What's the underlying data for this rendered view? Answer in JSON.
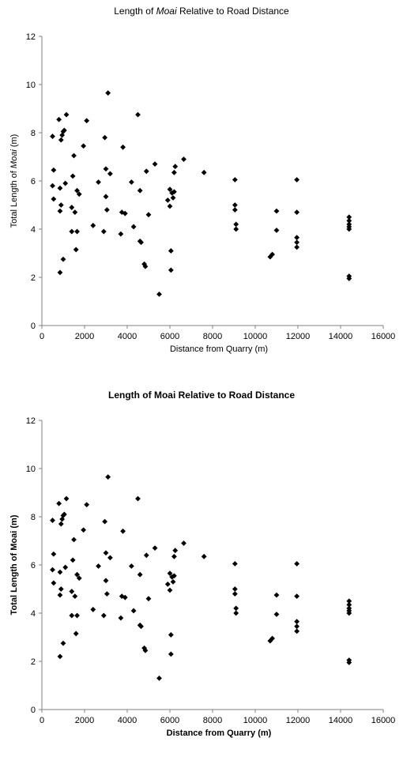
{
  "chart_data": [
    {
      "type": "scatter",
      "title_parts": [
        "Length of ",
        "Moai",
        " Relative to Road Distance"
      ],
      "xlabel": "Distance from Quarry (m)",
      "ylabel_parts": [
        "Total Length of ",
        "Moai",
        " (m)"
      ],
      "bold_labels": false,
      "xlim": [
        0,
        16000
      ],
      "ylim": [
        0,
        12
      ],
      "xticks": [
        "0",
        "2000",
        "4000",
        "6000",
        "8000",
        "10000",
        "12000",
        "14000",
        "16000"
      ],
      "yticks": [
        "0",
        "2",
        "4",
        "6",
        "8",
        "10",
        "12"
      ],
      "marker": "diamond",
      "marker_color": "#000000",
      "grid": false,
      "legend": "none",
      "points": [
        [
          500,
          7.85
        ],
        [
          500,
          5.8
        ],
        [
          550,
          6.45
        ],
        [
          550,
          5.25
        ],
        [
          800,
          8.55
        ],
        [
          850,
          5.7
        ],
        [
          850,
          4.75
        ],
        [
          900,
          5.0
        ],
        [
          900,
          7.7
        ],
        [
          950,
          7.9
        ],
        [
          1000,
          8.05
        ],
        [
          1050,
          8.1
        ],
        [
          1100,
          5.9
        ],
        [
          1000,
          2.75
        ],
        [
          850,
          2.2
        ],
        [
          1150,
          8.75
        ],
        [
          1400,
          3.9
        ],
        [
          1400,
          4.9
        ],
        [
          1450,
          6.2
        ],
        [
          1500,
          7.05
        ],
        [
          1550,
          4.7
        ],
        [
          1600,
          3.15
        ],
        [
          1650,
          3.9
        ],
        [
          1650,
          5.6
        ],
        [
          1750,
          5.45
        ],
        [
          1950,
          7.45
        ],
        [
          2100,
          8.5
        ],
        [
          2400,
          4.15
        ],
        [
          2650,
          5.95
        ],
        [
          2900,
          3.9
        ],
        [
          2950,
          7.8
        ],
        [
          3000,
          6.5
        ],
        [
          3000,
          5.35
        ],
        [
          3050,
          4.8
        ],
        [
          3100,
          9.65
        ],
        [
          3200,
          6.3
        ],
        [
          3700,
          3.8
        ],
        [
          3750,
          4.7
        ],
        [
          3800,
          7.4
        ],
        [
          3900,
          4.65
        ],
        [
          4200,
          5.95
        ],
        [
          4300,
          4.1
        ],
        [
          4500,
          8.75
        ],
        [
          4600,
          5.6
        ],
        [
          4600,
          3.5
        ],
        [
          4650,
          3.45
        ],
        [
          4800,
          2.55
        ],
        [
          4850,
          2.45
        ],
        [
          4900,
          6.4
        ],
        [
          5000,
          4.6
        ],
        [
          5300,
          6.7
        ],
        [
          5500,
          1.3
        ],
        [
          5900,
          5.2
        ],
        [
          6000,
          5.65
        ],
        [
          6000,
          4.95
        ],
        [
          6050,
          3.1
        ],
        [
          6050,
          2.3
        ],
        [
          6100,
          5.5
        ],
        [
          6150,
          5.3
        ],
        [
          6200,
          5.55
        ],
        [
          6200,
          6.35
        ],
        [
          6250,
          6.6
        ],
        [
          6650,
          6.9
        ],
        [
          7600,
          6.35
        ],
        [
          9050,
          6.05
        ],
        [
          9050,
          5.0
        ],
        [
          9050,
          4.8
        ],
        [
          9100,
          4.2
        ],
        [
          9100,
          4.0
        ],
        [
          10700,
          2.85
        ],
        [
          10800,
          2.95
        ],
        [
          11000,
          4.75
        ],
        [
          11000,
          3.95
        ],
        [
          11950,
          6.05
        ],
        [
          11950,
          4.7
        ],
        [
          11950,
          3.65
        ],
        [
          11950,
          3.45
        ],
        [
          11950,
          3.25
        ],
        [
          14400,
          4.5
        ],
        [
          14400,
          4.35
        ],
        [
          14400,
          4.2
        ],
        [
          14400,
          4.1
        ],
        [
          14400,
          4.0
        ],
        [
          14400,
          2.05
        ],
        [
          14400,
          1.95
        ]
      ]
    },
    {
      "type": "scatter",
      "title_parts": [
        "Length of Moai Relative to Road Distance"
      ],
      "xlabel": "Distance from Quarry (m)",
      "ylabel_parts": [
        "Total Length of Moai (m)"
      ],
      "bold_labels": true,
      "xlim": [
        0,
        16000
      ],
      "ylim": [
        0,
        12
      ],
      "xticks": [
        "0",
        "2000",
        "4000",
        "6000",
        "8000",
        "10000",
        "12000",
        "14000",
        "16000"
      ],
      "yticks": [
        "0",
        "2",
        "4",
        "6",
        "8",
        "10",
        "12"
      ],
      "marker": "diamond",
      "marker_color": "#000000",
      "grid": false,
      "legend": "none",
      "points": [
        [
          500,
          7.85
        ],
        [
          500,
          5.8
        ],
        [
          550,
          6.45
        ],
        [
          550,
          5.25
        ],
        [
          800,
          8.55
        ],
        [
          850,
          5.7
        ],
        [
          850,
          4.75
        ],
        [
          900,
          5.0
        ],
        [
          900,
          7.7
        ],
        [
          950,
          7.9
        ],
        [
          1000,
          8.05
        ],
        [
          1050,
          8.1
        ],
        [
          1100,
          5.9
        ],
        [
          1000,
          2.75
        ],
        [
          850,
          2.2
        ],
        [
          1150,
          8.75
        ],
        [
          1400,
          3.9
        ],
        [
          1400,
          4.9
        ],
        [
          1450,
          6.2
        ],
        [
          1500,
          7.05
        ],
        [
          1550,
          4.7
        ],
        [
          1600,
          3.15
        ],
        [
          1650,
          3.9
        ],
        [
          1650,
          5.6
        ],
        [
          1750,
          5.45
        ],
        [
          1950,
          7.45
        ],
        [
          2100,
          8.5
        ],
        [
          2400,
          4.15
        ],
        [
          2650,
          5.95
        ],
        [
          2900,
          3.9
        ],
        [
          2950,
          7.8
        ],
        [
          3000,
          6.5
        ],
        [
          3000,
          5.35
        ],
        [
          3050,
          4.8
        ],
        [
          3100,
          9.65
        ],
        [
          3200,
          6.3
        ],
        [
          3700,
          3.8
        ],
        [
          3750,
          4.7
        ],
        [
          3800,
          7.4
        ],
        [
          3900,
          4.65
        ],
        [
          4200,
          5.95
        ],
        [
          4300,
          4.1
        ],
        [
          4500,
          8.75
        ],
        [
          4600,
          5.6
        ],
        [
          4600,
          3.5
        ],
        [
          4650,
          3.45
        ],
        [
          4800,
          2.55
        ],
        [
          4850,
          2.45
        ],
        [
          4900,
          6.4
        ],
        [
          5000,
          4.6
        ],
        [
          5300,
          6.7
        ],
        [
          5500,
          1.3
        ],
        [
          5900,
          5.2
        ],
        [
          6000,
          5.65
        ],
        [
          6000,
          4.95
        ],
        [
          6050,
          3.1
        ],
        [
          6050,
          2.3
        ],
        [
          6100,
          5.5
        ],
        [
          6150,
          5.3
        ],
        [
          6200,
          5.55
        ],
        [
          6200,
          6.35
        ],
        [
          6250,
          6.6
        ],
        [
          6650,
          6.9
        ],
        [
          7600,
          6.35
        ],
        [
          9050,
          6.05
        ],
        [
          9050,
          5.0
        ],
        [
          9050,
          4.8
        ],
        [
          9100,
          4.2
        ],
        [
          9100,
          4.0
        ],
        [
          10700,
          2.85
        ],
        [
          10800,
          2.95
        ],
        [
          11000,
          4.75
        ],
        [
          11000,
          3.95
        ],
        [
          11950,
          6.05
        ],
        [
          11950,
          4.7
        ],
        [
          11950,
          3.65
        ],
        [
          11950,
          3.45
        ],
        [
          11950,
          3.25
        ],
        [
          14400,
          4.5
        ],
        [
          14400,
          4.35
        ],
        [
          14400,
          4.2
        ],
        [
          14400,
          4.1
        ],
        [
          14400,
          4.0
        ],
        [
          14400,
          2.05
        ],
        [
          14400,
          1.95
        ]
      ]
    }
  ]
}
